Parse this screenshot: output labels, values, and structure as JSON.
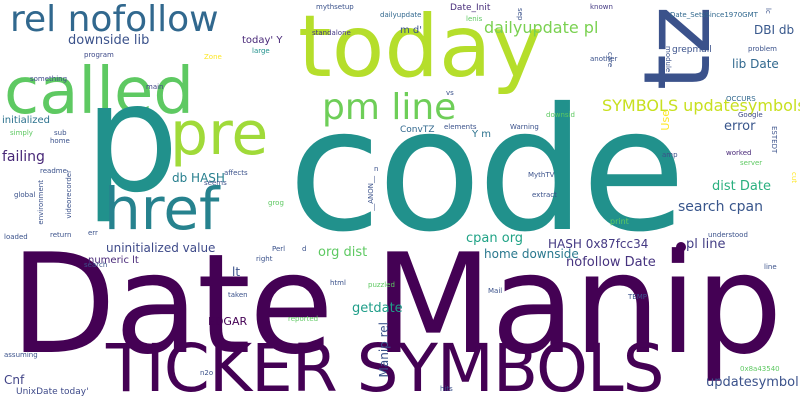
{
  "colors": {
    "background": "#ffffff",
    "palette": [
      "#440154",
      "#3b528b",
      "#21918c",
      "#5ec962",
      "#fde725"
    ]
  },
  "words": {
    "date_manip": "Date Manip",
    "code": "code",
    "ticker_symbols": "TICKER SYMBOLS",
    "today": "today",
    "tz": "tz",
    "called": "called",
    "p": "p",
    "rel_nofollow": "rel nofollow",
    "pre": "pre",
    "href": "href",
    "pm_line": "pm line",
    "dailyupdate_pl": "dailyupdate pl",
    "symbols_updatesymbols": "SYMBOLS updatesymbols",
    "downside_lib": "downside lib",
    "failing": "failing",
    "db_hash": "db HASH",
    "uninitialized_value": "uninitialized value",
    "org_dist": "org dist",
    "cpan_org": "cpan org",
    "hash_0x87fcc34": "HASH 0x87fcc34",
    "pl_line": "pl line",
    "nofollow_date": "nofollow Date",
    "home_downside": "home downside",
    "search_cpan": "search cpan",
    "dist_date": "dist Date",
    "error": "error",
    "lib_date": "lib Date",
    "dbi_db": "DBI db",
    "updatesymbol": "updatesymbol",
    "getdate": "getdate",
    "manip_rel": "Manip rel",
    "edgar": "EDGAR",
    "numeric_lt": "numeric lt",
    "lt": "lt",
    "cnf": "Cnf",
    "unixdate_today": "UnixDate today'",
    "initialized": "initialized",
    "m_d": "m d'",
    "today_y": "today' Y",
    "date_init": "Date_Init",
    "mythsetup": "mythsetup",
    "dailyupdate": "dailyupdate",
    "standalone": "standalone",
    "large": "large",
    "program": "program",
    "zone": "Zone",
    "something": "something",
    "main": "main",
    "date_setssince": "Date_SetsSince1970GMT",
    "grepmail": "grepmail",
    "problem": "problem",
    "occurs": "OCCURS",
    "google": "Google",
    "estedt": "ESTEDT",
    "worked": "worked",
    "server": "server",
    "amp": "amp",
    "known": "known",
    "lc": "lc",
    "care": "care",
    "another": "another",
    "module": "module",
    "sep": "sep",
    "lenis": "lenis",
    "vs": "vs",
    "y_m": "Y m",
    "elements": "elements",
    "convtz": "ConvTZ",
    "warning": "Warning",
    "downsid": "downsid",
    "use": "Use",
    "sub": "sub",
    "simply": "simply",
    "home": "home",
    "readme": "readme",
    "global": "global",
    "environment": "environment",
    "videorecorder": "videorecorder",
    "affects": "affects",
    "seems": "seems",
    "grog": "grog",
    "n": "n",
    "anon": "__ANON__",
    "mythtv": "MythTV",
    "extract": "extract",
    "print": "print",
    "cut": "cut",
    "loaded": "loaded",
    "return": "return",
    "err": "err",
    "perl": "Perl",
    "d": "d",
    "right": "right",
    "search": "search",
    "taken": "taken",
    "html": "html",
    "puzzled": "puzzled",
    "mail": "Mail",
    "temp": "TEMP",
    "understood": "understood",
    "line": "line",
    "reported": "reported",
    "0x8a43540": "0x8a43540",
    "assuming": "assuming",
    "n2o": "n2o",
    "hits": "hits"
  }
}
